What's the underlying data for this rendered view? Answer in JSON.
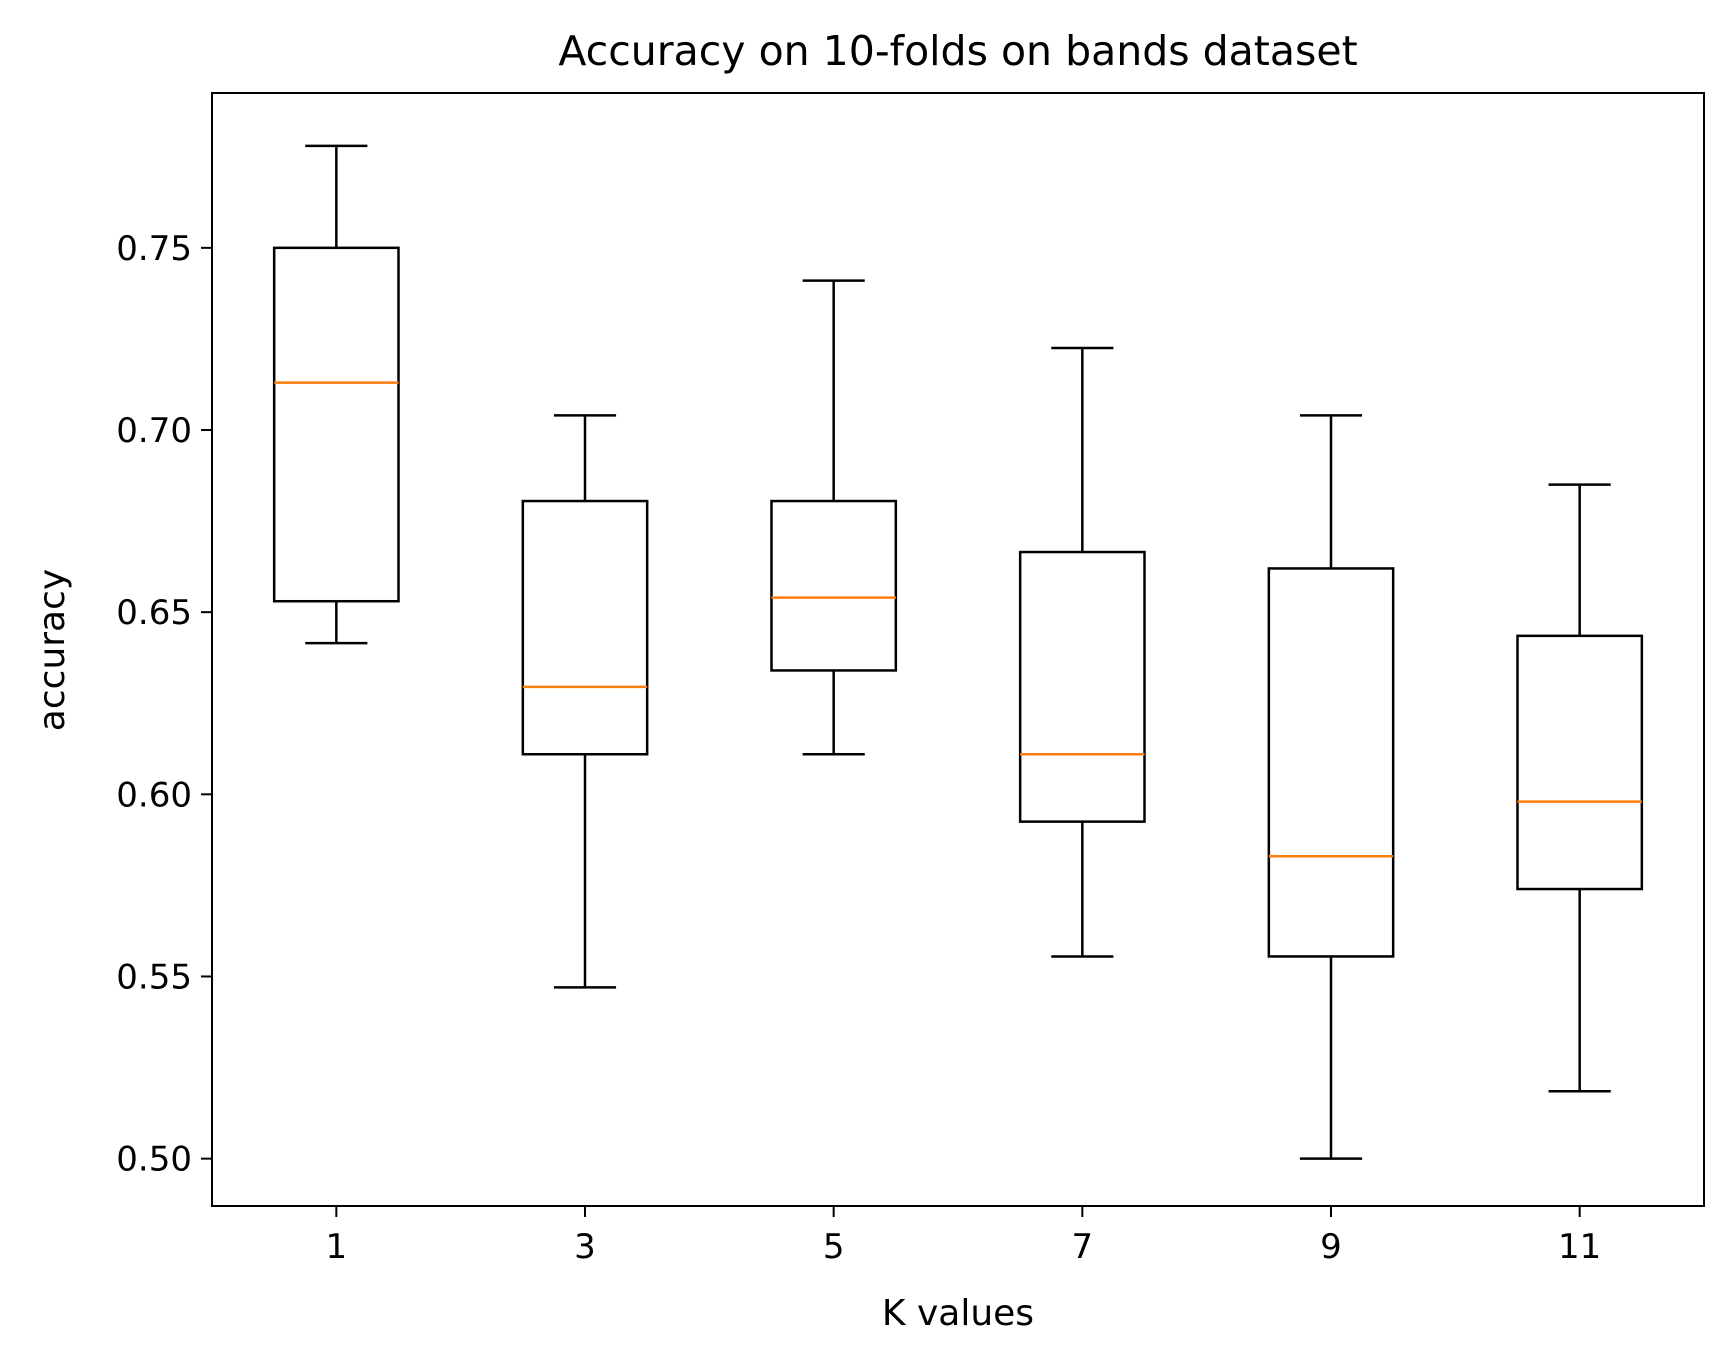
{
  "chart_data": {
    "type": "box",
    "title": "Accuracy on 10-folds on bands dataset",
    "xlabel": "K values",
    "ylabel": "accuracy",
    "categories": [
      "1",
      "3",
      "5",
      "7",
      "9",
      "11"
    ],
    "boxes": [
      {
        "whislo": 0.6415,
        "q1": 0.653,
        "med": 0.713,
        "q3": 0.75,
        "whishi": 0.778
      },
      {
        "whislo": 0.547,
        "q1": 0.611,
        "med": 0.6295,
        "q3": 0.6805,
        "whishi": 0.704
      },
      {
        "whislo": 0.611,
        "q1": 0.634,
        "med": 0.654,
        "q3": 0.6805,
        "whishi": 0.741
      },
      {
        "whislo": 0.5555,
        "q1": 0.5925,
        "med": 0.611,
        "q3": 0.6665,
        "whishi": 0.7225
      },
      {
        "whislo": 0.5,
        "q1": 0.5555,
        "med": 0.583,
        "q3": 0.662,
        "whishi": 0.704
      },
      {
        "whislo": 0.5185,
        "q1": 0.574,
        "med": 0.598,
        "q3": 0.6435,
        "whishi": 0.685
      }
    ],
    "y_ticks": [
      "0.50",
      "0.55",
      "0.60",
      "0.65",
      "0.70",
      "0.75"
    ],
    "y_tick_values": [
      0.5,
      0.55,
      0.6,
      0.65,
      0.7,
      0.75
    ],
    "ylim": [
      0.487,
      0.7925
    ],
    "grid": false,
    "colors": {
      "box": "#000000",
      "median": "#ff7f0e"
    }
  }
}
